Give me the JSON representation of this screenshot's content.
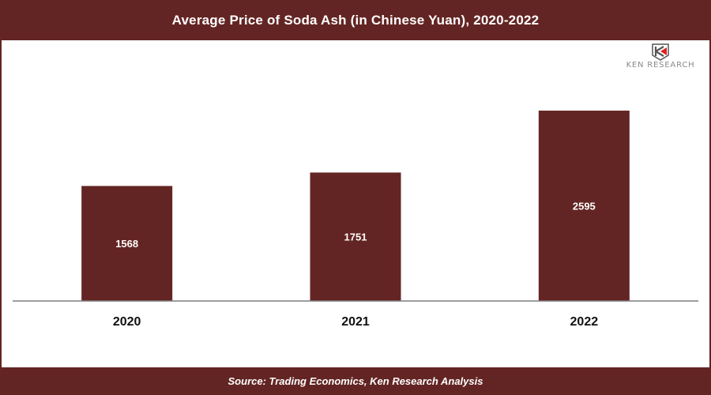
{
  "header": {
    "title": "Average Price of Soda Ash (in Chinese Yuan), 2020-2022"
  },
  "footer": {
    "source": "Source: Trading Economics, Ken Research Analysis"
  },
  "logo": {
    "text": "KEN RESEARCH",
    "icon": "ken-research-shield-icon"
  },
  "colors": {
    "brand": "#632523",
    "bar": "#632523",
    "axis": "#7f7f7f",
    "background": "#ffffff",
    "logo_accent": "#e02020"
  },
  "chart_data": {
    "type": "bar",
    "title": "Average Price of Soda Ash (in Chinese Yuan), 2020-2022",
    "categories": [
      "2020",
      "2021",
      "2022"
    ],
    "values": [
      1568,
      1751,
      2595
    ],
    "value_labels": [
      "1568",
      "1751",
      "2595"
    ],
    "xlabel": "",
    "ylabel": "",
    "ylim": [
      0,
      2800
    ],
    "grid": false,
    "legend": "none",
    "source": "Source: Trading Economics, Ken Research Analysis"
  }
}
